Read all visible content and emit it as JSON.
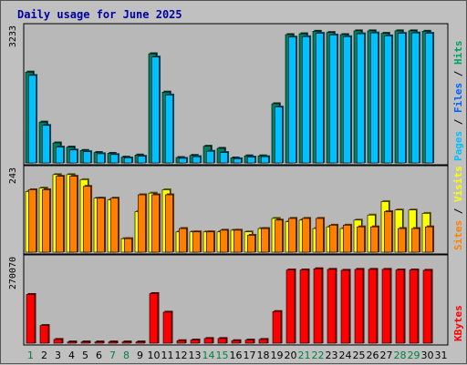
{
  "chart_data": {
    "type": "bar",
    "title": "Daily usage for June 2025",
    "categories": [
      "1",
      "2",
      "3",
      "4",
      "5",
      "6",
      "7",
      "8",
      "9",
      "10",
      "11",
      "12",
      "13",
      "14",
      "15",
      "16",
      "17",
      "18",
      "19",
      "20",
      "21",
      "22",
      "23",
      "24",
      "25",
      "26",
      "27",
      "28",
      "29",
      "30",
      "31"
    ],
    "weekend_days": [
      "1",
      "7",
      "8",
      "14",
      "15",
      "21",
      "22",
      "28",
      "29"
    ],
    "panels": [
      {
        "name": "hits-files-pages",
        "axis_max_label": "3233",
        "ylim": [
          0,
          3233
        ],
        "right_label": [
          {
            "text": "Pages",
            "color": "#00c0ff"
          },
          {
            "text": " / ",
            "color": "#000000"
          },
          {
            "text": "Files",
            "color": "#0060ff"
          },
          {
            "text": " / ",
            "color": "#000000"
          },
          {
            "text": "Hits",
            "color": "#00a060"
          }
        ],
        "series": [
          {
            "name": "Hits",
            "color": "#008060",
            "values": [
              2180,
              980,
              480,
              380,
              300,
              250,
              230,
              140,
              190,
              2620,
              1700,
              130,
              180,
              400,
              350,
              120,
              170,
              170,
              1420,
              3080,
              3100,
              3160,
              3130,
              3080,
              3170,
              3170,
              3110,
              3170,
              3170,
              3160,
              0
            ]
          },
          {
            "name": "Files",
            "color": "#00c0ff",
            "values": [
              2100,
              900,
              380,
              310,
              270,
              220,
              200,
              120,
              160,
              2540,
              1630,
              110,
              150,
              280,
              250,
              100,
              140,
              150,
              1340,
              3020,
              3030,
              3110,
              3070,
              3030,
              3100,
              3120,
              3050,
              3110,
              3120,
              3110,
              0
            ]
          }
        ]
      },
      {
        "name": "visits-sites",
        "axis_max_label": "243",
        "ylim": [
          0,
          243
        ],
        "right_label": [
          {
            "text": "Sites",
            "color": "#ff8000"
          },
          {
            "text": " / ",
            "color": "#000000"
          },
          {
            "text": "Visits",
            "color": "#ffff00"
          }
        ],
        "series": [
          {
            "name": "Visits",
            "color": "#ffff00",
            "values": [
              180,
              190,
              230,
              230,
              215,
              160,
              155,
              40,
              120,
              175,
              185,
              60,
              60,
              60,
              60,
              65,
              60,
              70,
              100,
              90,
              95,
              70,
              75,
              70,
              95,
              110,
              150,
              125,
              125,
              115,
              0
            ]
          },
          {
            "name": "Sites",
            "color": "#ff8000",
            "values": [
              185,
              185,
              225,
              225,
              195,
              160,
              160,
              40,
              170,
              170,
              170,
              70,
              60,
              60,
              65,
              65,
              50,
              70,
              95,
              100,
              100,
              100,
              80,
              80,
              75,
              75,
              120,
              70,
              70,
              75,
              0
            ]
          }
        ]
      },
      {
        "name": "kbytes",
        "axis_max_label": "270070",
        "ylim": [
          0,
          270070
        ],
        "right_label": [
          {
            "text": "KBytes",
            "color": "#ff0000"
          }
        ],
        "series": [
          {
            "name": "KBytes",
            "color": "#ff0000",
            "values": [
              157000,
              57000,
              12000,
              4000,
              4000,
              4000,
              4000,
              4000,
              4000,
              160000,
              100000,
              8000,
              10000,
              15000,
              15000,
              8000,
              10000,
              12000,
              102000,
              236000,
              236000,
              240000,
              238000,
              235000,
              238000,
              238000,
              238000,
              236000,
              236000,
              235000,
              0
            ]
          }
        ]
      }
    ]
  }
}
